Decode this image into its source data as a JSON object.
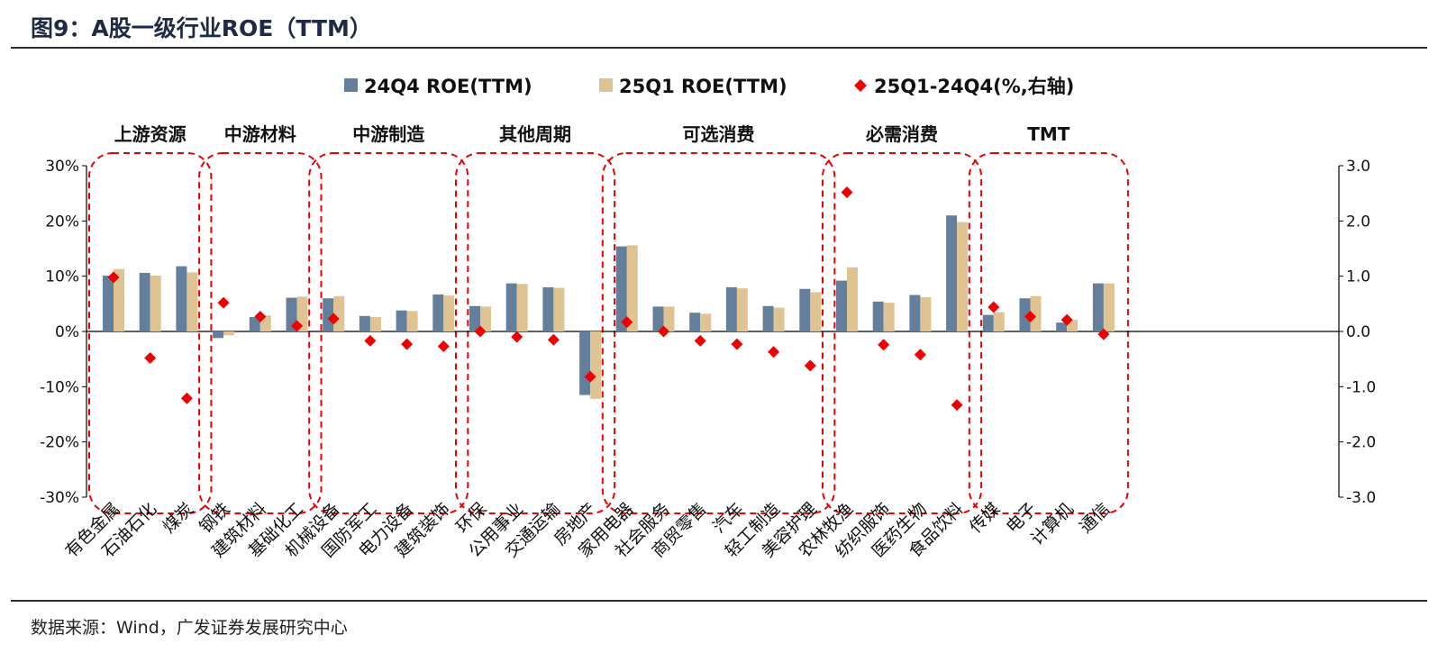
{
  "page": {
    "title": "图9：A股一级行业ROE（TTM）",
    "source": "数据来源：Wind，广发证券发展研究中心"
  },
  "colors": {
    "bar24": "#647f9b",
    "bar25": "#dfc393",
    "diamond": "#ee0000",
    "group_box": "#ee0000"
  },
  "chart_data": {
    "type": "bar",
    "categories": [
      "有色金属",
      "石油石化",
      "煤炭",
      "钢铁",
      "建筑材料",
      "基础化工",
      "机械设备",
      "国防军工",
      "电力设备",
      "建筑装饰",
      "环保",
      "公用事业",
      "交通运输",
      "房地产",
      "家用电器",
      "社会服务",
      "商贸零售",
      "汽车",
      "轻工制造",
      "美容护理",
      "农林牧渔",
      "纺织服饰",
      "医药生物",
      "食品饮料",
      "传媒",
      "电子",
      "计算机",
      "通信"
    ],
    "series": [
      {
        "name": "24Q4 ROE(TTM)",
        "kind": "bar",
        "axis": "left",
        "values": [
          10.1,
          10.6,
          11.8,
          -1.2,
          2.6,
          6.1,
          6.0,
          2.8,
          3.8,
          6.7,
          4.6,
          8.7,
          8.0,
          -11.5,
          15.4,
          4.5,
          3.4,
          8.0,
          4.6,
          7.7,
          9.2,
          5.4,
          6.6,
          21.0,
          3.0,
          6.0,
          1.6,
          8.7
        ]
      },
      {
        "name": "25Q1 ROE(TTM)",
        "kind": "bar",
        "axis": "left",
        "values": [
          11.3,
          10.1,
          10.7,
          -0.7,
          2.9,
          6.3,
          6.4,
          2.6,
          3.7,
          6.5,
          4.5,
          8.6,
          7.9,
          -12.2,
          15.6,
          4.5,
          3.2,
          7.8,
          4.3,
          7.1,
          11.6,
          5.2,
          6.2,
          19.8,
          3.5,
          6.4,
          2.1,
          8.7
        ]
      },
      {
        "name": "25Q1-24Q4(%,右轴)",
        "kind": "scatter",
        "axis": "right",
        "values": [
          0.98,
          -0.48,
          -1.21,
          0.52,
          0.27,
          0.1,
          0.23,
          -0.17,
          -0.23,
          -0.27,
          0.0,
          -0.1,
          -0.15,
          -0.82,
          0.17,
          0.0,
          -0.17,
          -0.23,
          -0.37,
          -0.62,
          2.52,
          -0.24,
          -0.42,
          -1.33,
          0.44,
          0.27,
          0.21,
          -0.05
        ]
      }
    ],
    "groups": [
      {
        "label": "上游资源",
        "start": 0,
        "end": 2
      },
      {
        "label": "中游材料",
        "start": 3,
        "end": 5
      },
      {
        "label": "中游制造",
        "start": 6,
        "end": 9
      },
      {
        "label": "其他周期",
        "start": 10,
        "end": 13
      },
      {
        "label": "可选消费",
        "start": 14,
        "end": 19
      },
      {
        "label": "必需消费",
        "start": 20,
        "end": 23
      },
      {
        "label": "TMT",
        "start": 24,
        "end": 27
      }
    ],
    "y_left": {
      "ylim": [
        -30,
        30
      ],
      "ticks": [
        "-30%",
        "-20%",
        "-10%",
        "0%",
        "10%",
        "20%",
        "30%"
      ]
    },
    "y_right": {
      "ylim": [
        -3,
        3
      ],
      "ticks": [
        "-3.0",
        "-2.0",
        "-1.0",
        "0.0",
        "1.0",
        "2.0",
        "3.0"
      ]
    },
    "legend": {
      "position": "top-center"
    },
    "grid": false
  }
}
